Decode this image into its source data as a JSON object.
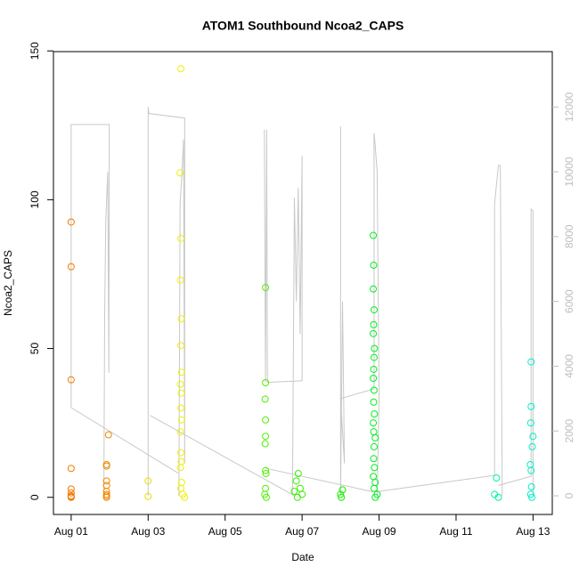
{
  "chart_data": {
    "type": "scatter",
    "title": "ATOM1 Southbound Ncoa2_CAPS",
    "x_label": "Date",
    "y_label": "Ncoa2_CAPS",
    "xlim": [
      0.54,
      13.5
    ],
    "xticks": [
      {
        "value": 1,
        "label": "Aug 01"
      },
      {
        "value": 3,
        "label": "Aug 03"
      },
      {
        "value": 5,
        "label": "Aug 05"
      },
      {
        "value": 7,
        "label": "Aug 07"
      },
      {
        "value": 9,
        "label": "Aug 09"
      },
      {
        "value": 11,
        "label": "Aug 11"
      },
      {
        "value": 13,
        "label": "Aug 13"
      }
    ],
    "ylim": [
      -5.76,
      149.76
    ],
    "yticks": [
      0,
      50,
      100,
      150
    ],
    "y2lim": [
      -577,
      13710
    ],
    "y2ticks": [
      0,
      2000,
      4000,
      6000,
      8000,
      10000,
      12000
    ],
    "y2_color": "#bebebe",
    "series": [
      {
        "type": "line",
        "axis": "y2",
        "color": "#c8c8c8",
        "x": [
          1.0,
          1.0,
          1.99,
          1.98,
          1.95,
          1.9,
          1.87,
          1.85,
          null,
          1.0,
          3.78,
          null,
          3.0,
          3.0,
          3.02,
          3.95,
          3.95,
          3.92,
          3.88,
          3.83,
          3.8,
          null,
          3.05,
          6.8,
          null,
          6.02,
          6.05,
          6.08,
          6.1,
          7.0,
          7.0,
          6.95,
          6.9,
          6.85,
          6.8,
          6.75,
          null,
          6.05,
          8.85,
          null,
          8.0,
          8.0,
          8.05,
          8.1,
          8.0,
          8.87,
          8.87,
          8.9,
          8.95,
          9.0,
          8.95,
          null,
          8.9,
          12.0,
          12.0,
          12.1,
          12.15,
          12.2,
          null,
          12.1,
          12.95,
          12.95,
          13.0,
          13.0
        ],
        "values": [
          2720,
          11460,
          11460,
          3800,
          10000,
          8500,
          5500,
          0,
          null,
          2720,
          700,
          null,
          0,
          12000,
          11800,
          11660,
          1000,
          11000,
          10000,
          9000,
          0,
          null,
          2480,
          0,
          null,
          11300,
          3500,
          11300,
          3500,
          3550,
          10500,
          5000,
          9500,
          6000,
          9200,
          0,
          null,
          850,
          120,
          null,
          11400,
          0,
          6000,
          1000,
          3000,
          3300,
          11200,
          10800,
          10000,
          3000,
          0,
          null,
          120,
          630,
          9000,
          10200,
          10200,
          0,
          null,
          320,
          600,
          8850,
          8800,
          0
        ]
      },
      {
        "type": "scatter",
        "color": "#f07c00",
        "x": [
          1.0,
          1.0,
          1.0,
          1.0,
          1.0,
          1.0,
          1.0,
          1.0,
          1.0
        ],
        "values": [
          92.5,
          77.5,
          39.5,
          9.7,
          2.8,
          1.5,
          0.5,
          0,
          0.3
        ]
      },
      {
        "type": "scatter",
        "color": "#f08a00",
        "x": [
          1.92,
          1.92,
          1.92,
          1.92,
          1.92,
          1.92,
          1.92,
          1.92,
          1.97
        ],
        "values": [
          11,
          10.5,
          5.5,
          4,
          2,
          1,
          0.5,
          0,
          21
        ]
      },
      {
        "type": "scatter",
        "color": "#e6e000",
        "x": [
          3.0,
          3.0
        ],
        "values": [
          5.5,
          0.3
        ]
      },
      {
        "type": "scatter",
        "color": "#f0f000",
        "x": [
          3.85,
          3.83,
          3.85,
          3.84,
          3.86,
          3.85,
          3.87,
          3.84,
          3.86,
          3.85,
          3.87,
          3.84,
          3.85,
          3.86,
          3.84,
          3.87,
          3.85,
          3.9,
          3.95
        ],
        "values": [
          144,
          109,
          87,
          73,
          60,
          51,
          42,
          38,
          35,
          30,
          26,
          22,
          15,
          12,
          10,
          5,
          3,
          1,
          0
        ]
      },
      {
        "type": "scatter",
        "color": "#50f000",
        "x": [
          6.05,
          6.05,
          6.04,
          6.05,
          6.05,
          6.04,
          6.05,
          6.06,
          6.05,
          6.03,
          6.07
        ],
        "values": [
          70.5,
          38.5,
          33,
          26,
          20.5,
          18,
          9,
          8,
          3,
          1,
          0
        ]
      },
      {
        "type": "scatter",
        "color": "#38f000",
        "x": [
          6.9,
          6.85,
          6.95,
          6.8,
          7.0,
          6.88
        ],
        "values": [
          8,
          5.5,
          3,
          2,
          1,
          0
        ]
      },
      {
        "type": "scatter",
        "color": "#18f000",
        "x": [
          8.05,
          8.0,
          8.02
        ],
        "values": [
          2.5,
          1,
          0
        ]
      },
      {
        "type": "scatter",
        "color": "#00f020",
        "x": [
          8.85,
          8.86,
          8.85,
          8.87,
          8.86,
          8.85,
          8.88,
          8.87,
          8.86,
          8.85,
          8.87,
          8.86,
          8.88,
          8.85,
          8.86,
          8.9,
          8.87,
          8.86,
          8.88,
          8.85,
          8.9,
          8.87,
          8.95,
          8.9
        ],
        "values": [
          88,
          78,
          70,
          63,
          58,
          55,
          50,
          47,
          43,
          40,
          36,
          32,
          28,
          25,
          22,
          20,
          17,
          13,
          10,
          7,
          5,
          3,
          1,
          0
        ]
      },
      {
        "type": "scatter",
        "color": "#00f0a8",
        "x": [
          12.05,
          12.0,
          12.1
        ],
        "values": [
          6.5,
          1,
          0
        ]
      },
      {
        "type": "scatter",
        "color": "#00f0c8",
        "x": [
          12.95,
          12.95,
          12.94,
          13.0,
          12.98,
          12.93,
          12.95,
          12.96,
          12.94,
          12.97
        ],
        "values": [
          45.5,
          30.5,
          25,
          20.5,
          17,
          11,
          9,
          3.5,
          1,
          0
        ]
      }
    ]
  }
}
